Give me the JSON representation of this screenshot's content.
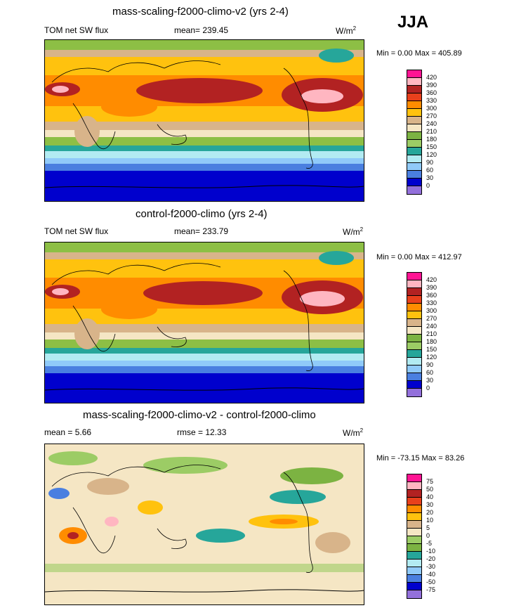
{
  "season": "JJA",
  "panels": [
    {
      "title": "mass-scaling-f2000-climo-v2 (yrs 2-4)",
      "left_label": "TOM net SW flux",
      "center_label": "mean= 239.45",
      "units": "W/m",
      "units_sup": "2",
      "minmax": "Min =   0.00 Max = 405.89",
      "levels": [
        "420",
        "390",
        "360",
        "330",
        "300",
        "270",
        "240",
        "210",
        "180",
        "150",
        "120",
        "90",
        "60",
        "30",
        "0"
      ],
      "colors": [
        "#ff1493",
        "#ffb6c1",
        "#b22222",
        "#e03a1e",
        "#ff8c00",
        "#ffd700",
        "#f5e6a8",
        "#d2b48c",
        "#fff5dc",
        "#8fbc3f",
        "#9acd32",
        "#20b2aa",
        "#afeeee",
        "#87cefa",
        "#6495ed",
        "#4169e1",
        "#0000cd",
        "#9370db"
      ]
    },
    {
      "title": "control-f2000-climo (yrs 2-4)",
      "left_label": "TOM net SW flux",
      "center_label": "mean= 233.79",
      "units": "W/m",
      "units_sup": "2",
      "minmax": "Min =   0.00 Max = 412.97",
      "levels": [
        "420",
        "390",
        "360",
        "330",
        "300",
        "270",
        "240",
        "210",
        "180",
        "150",
        "120",
        "90",
        "60",
        "30",
        "0"
      ]
    },
    {
      "title": "mass-scaling-f2000-climo-v2 - control-f2000-climo",
      "left_label": "mean =   5.66",
      "center_label": "rmse =  12.33",
      "units": "W/m",
      "units_sup": "2",
      "minmax": "Min = -73.15 Max =  83.26",
      "levels": [
        "75",
        "50",
        "40",
        "30",
        "20",
        "10",
        "5",
        "0",
        "-5",
        "-10",
        "-20",
        "-30",
        "-40",
        "-50",
        "-75"
      ]
    }
  ],
  "colors_abs": [
    "#ff1493",
    "#ffb6c1",
    "#b22222",
    "#e8401c",
    "#ff8c00",
    "#ffc20e",
    "#d8b48a",
    "#f5e6c4",
    "#7cb342",
    "#9ccc65",
    "#26a69a",
    "#b2ebf2",
    "#90caf9",
    "#4a7fe0",
    "#0000cd",
    "#9370db"
  ],
  "colors_diff": [
    "#ff1493",
    "#ffb6c1",
    "#b22222",
    "#e8401c",
    "#ff8c00",
    "#ffc20e",
    "#d8b48a",
    "#f5e6c4",
    "#9ccc65",
    "#7cb342",
    "#26a69a",
    "#b2ebf2",
    "#90caf9",
    "#4a7fe0",
    "#0000cd",
    "#9370db"
  ]
}
